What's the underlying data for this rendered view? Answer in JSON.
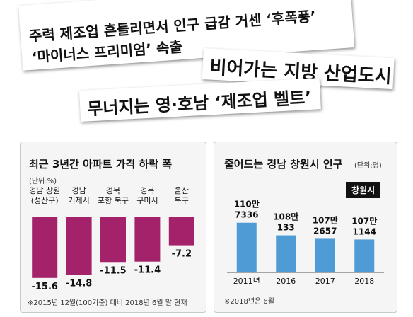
{
  "headlines": {
    "h1_line1": "주력 제조업 흔들리면서 인구 급감 거센 ‘후폭풍’",
    "h1_line2": "‘마이너스 프리미엄’ 속출",
    "h2": "비어가는 지방 산업도시",
    "h3": "무너지는 영·호남 ‘제조업 벨트’"
  },
  "panel1": {
    "title": "최근 3년간 아파트 가격 하락 폭",
    "unit": "(단위:%)",
    "footnote": "※2015년 12월(100기준) 대비 2018년 6월 말 현재"
  },
  "panel2": {
    "title": "줄어드는 경남 창원시 인구",
    "unit": "(단위:명)",
    "badge": "창원시",
    "footnote": "※2018년은 6월"
  },
  "chart_data": [
    {
      "type": "bar",
      "title": "최근 3년간 아파트 가격 하락 폭",
      "ylabel": "",
      "categories": [
        "경남 창원\n(성산구)",
        "경남\n거제시",
        "경북\n포항 북구",
        "경북\n구미시",
        "울산\n북구"
      ],
      "values": [
        -15.6,
        -14.8,
        -11.5,
        -11.4,
        -7.2
      ],
      "value_labels": [
        "-15.6",
        "-14.8",
        "-11.5",
        "-11.4",
        "-7.2"
      ],
      "ylim": [
        -16,
        0
      ],
      "color": "#a3226a",
      "grid": false
    },
    {
      "type": "bar",
      "title": "줄어드는 경남 창원시 인구",
      "ylabel": "",
      "categories": [
        "2011년",
        "2016",
        "2017",
        "2018"
      ],
      "values": [
        1107336,
        1080133,
        1072657,
        1071144
      ],
      "value_labels": [
        "110만\n7336",
        "108만\n133",
        "107만\n2657",
        "107만\n1144"
      ],
      "ylim": [
        1000000,
        1110000
      ],
      "color": "#4f9bd6",
      "grid": false
    }
  ]
}
